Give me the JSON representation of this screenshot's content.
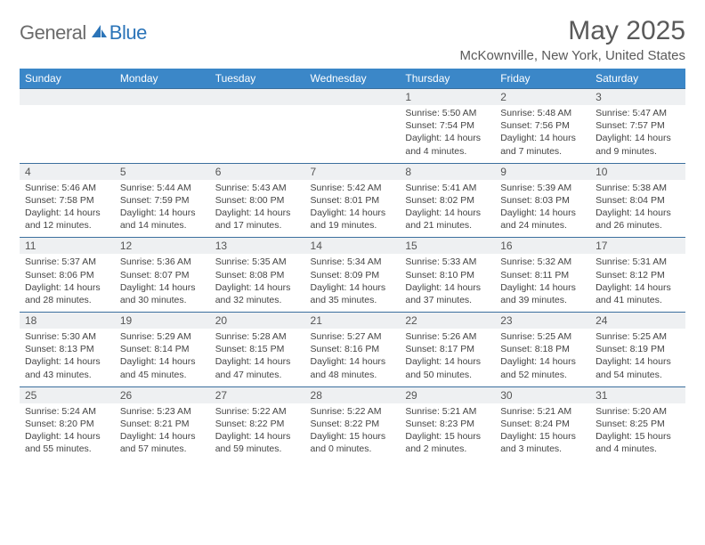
{
  "logo": {
    "general": "General",
    "blue": "Blue"
  },
  "title": "May 2025",
  "location": "McKownville, New York, United States",
  "colors": {
    "header_bg": "#3b87c8",
    "header_text": "#ffffff",
    "daynum_bg": "#eef0f2",
    "border": "#3b6f9e",
    "logo_gray": "#6b6b6b",
    "logo_blue": "#2b74b8",
    "text": "#444444"
  },
  "day_headers": [
    "Sunday",
    "Monday",
    "Tuesday",
    "Wednesday",
    "Thursday",
    "Friday",
    "Saturday"
  ],
  "weeks": [
    [
      {
        "n": "",
        "sr": "",
        "ss": "",
        "dl": ""
      },
      {
        "n": "",
        "sr": "",
        "ss": "",
        "dl": ""
      },
      {
        "n": "",
        "sr": "",
        "ss": "",
        "dl": ""
      },
      {
        "n": "",
        "sr": "",
        "ss": "",
        "dl": ""
      },
      {
        "n": "1",
        "sr": "Sunrise: 5:50 AM",
        "ss": "Sunset: 7:54 PM",
        "dl": "Daylight: 14 hours and 4 minutes."
      },
      {
        "n": "2",
        "sr": "Sunrise: 5:48 AM",
        "ss": "Sunset: 7:56 PM",
        "dl": "Daylight: 14 hours and 7 minutes."
      },
      {
        "n": "3",
        "sr": "Sunrise: 5:47 AM",
        "ss": "Sunset: 7:57 PM",
        "dl": "Daylight: 14 hours and 9 minutes."
      }
    ],
    [
      {
        "n": "4",
        "sr": "Sunrise: 5:46 AM",
        "ss": "Sunset: 7:58 PM",
        "dl": "Daylight: 14 hours and 12 minutes."
      },
      {
        "n": "5",
        "sr": "Sunrise: 5:44 AM",
        "ss": "Sunset: 7:59 PM",
        "dl": "Daylight: 14 hours and 14 minutes."
      },
      {
        "n": "6",
        "sr": "Sunrise: 5:43 AM",
        "ss": "Sunset: 8:00 PM",
        "dl": "Daylight: 14 hours and 17 minutes."
      },
      {
        "n": "7",
        "sr": "Sunrise: 5:42 AM",
        "ss": "Sunset: 8:01 PM",
        "dl": "Daylight: 14 hours and 19 minutes."
      },
      {
        "n": "8",
        "sr": "Sunrise: 5:41 AM",
        "ss": "Sunset: 8:02 PM",
        "dl": "Daylight: 14 hours and 21 minutes."
      },
      {
        "n": "9",
        "sr": "Sunrise: 5:39 AM",
        "ss": "Sunset: 8:03 PM",
        "dl": "Daylight: 14 hours and 24 minutes."
      },
      {
        "n": "10",
        "sr": "Sunrise: 5:38 AM",
        "ss": "Sunset: 8:04 PM",
        "dl": "Daylight: 14 hours and 26 minutes."
      }
    ],
    [
      {
        "n": "11",
        "sr": "Sunrise: 5:37 AM",
        "ss": "Sunset: 8:06 PM",
        "dl": "Daylight: 14 hours and 28 minutes."
      },
      {
        "n": "12",
        "sr": "Sunrise: 5:36 AM",
        "ss": "Sunset: 8:07 PM",
        "dl": "Daylight: 14 hours and 30 minutes."
      },
      {
        "n": "13",
        "sr": "Sunrise: 5:35 AM",
        "ss": "Sunset: 8:08 PM",
        "dl": "Daylight: 14 hours and 32 minutes."
      },
      {
        "n": "14",
        "sr": "Sunrise: 5:34 AM",
        "ss": "Sunset: 8:09 PM",
        "dl": "Daylight: 14 hours and 35 minutes."
      },
      {
        "n": "15",
        "sr": "Sunrise: 5:33 AM",
        "ss": "Sunset: 8:10 PM",
        "dl": "Daylight: 14 hours and 37 minutes."
      },
      {
        "n": "16",
        "sr": "Sunrise: 5:32 AM",
        "ss": "Sunset: 8:11 PM",
        "dl": "Daylight: 14 hours and 39 minutes."
      },
      {
        "n": "17",
        "sr": "Sunrise: 5:31 AM",
        "ss": "Sunset: 8:12 PM",
        "dl": "Daylight: 14 hours and 41 minutes."
      }
    ],
    [
      {
        "n": "18",
        "sr": "Sunrise: 5:30 AM",
        "ss": "Sunset: 8:13 PM",
        "dl": "Daylight: 14 hours and 43 minutes."
      },
      {
        "n": "19",
        "sr": "Sunrise: 5:29 AM",
        "ss": "Sunset: 8:14 PM",
        "dl": "Daylight: 14 hours and 45 minutes."
      },
      {
        "n": "20",
        "sr": "Sunrise: 5:28 AM",
        "ss": "Sunset: 8:15 PM",
        "dl": "Daylight: 14 hours and 47 minutes."
      },
      {
        "n": "21",
        "sr": "Sunrise: 5:27 AM",
        "ss": "Sunset: 8:16 PM",
        "dl": "Daylight: 14 hours and 48 minutes."
      },
      {
        "n": "22",
        "sr": "Sunrise: 5:26 AM",
        "ss": "Sunset: 8:17 PM",
        "dl": "Daylight: 14 hours and 50 minutes."
      },
      {
        "n": "23",
        "sr": "Sunrise: 5:25 AM",
        "ss": "Sunset: 8:18 PM",
        "dl": "Daylight: 14 hours and 52 minutes."
      },
      {
        "n": "24",
        "sr": "Sunrise: 5:25 AM",
        "ss": "Sunset: 8:19 PM",
        "dl": "Daylight: 14 hours and 54 minutes."
      }
    ],
    [
      {
        "n": "25",
        "sr": "Sunrise: 5:24 AM",
        "ss": "Sunset: 8:20 PM",
        "dl": "Daylight: 14 hours and 55 minutes."
      },
      {
        "n": "26",
        "sr": "Sunrise: 5:23 AM",
        "ss": "Sunset: 8:21 PM",
        "dl": "Daylight: 14 hours and 57 minutes."
      },
      {
        "n": "27",
        "sr": "Sunrise: 5:22 AM",
        "ss": "Sunset: 8:22 PM",
        "dl": "Daylight: 14 hours and 59 minutes."
      },
      {
        "n": "28",
        "sr": "Sunrise: 5:22 AM",
        "ss": "Sunset: 8:22 PM",
        "dl": "Daylight: 15 hours and 0 minutes."
      },
      {
        "n": "29",
        "sr": "Sunrise: 5:21 AM",
        "ss": "Sunset: 8:23 PM",
        "dl": "Daylight: 15 hours and 2 minutes."
      },
      {
        "n": "30",
        "sr": "Sunrise: 5:21 AM",
        "ss": "Sunset: 8:24 PM",
        "dl": "Daylight: 15 hours and 3 minutes."
      },
      {
        "n": "31",
        "sr": "Sunrise: 5:20 AM",
        "ss": "Sunset: 8:25 PM",
        "dl": "Daylight: 15 hours and 4 minutes."
      }
    ]
  ]
}
